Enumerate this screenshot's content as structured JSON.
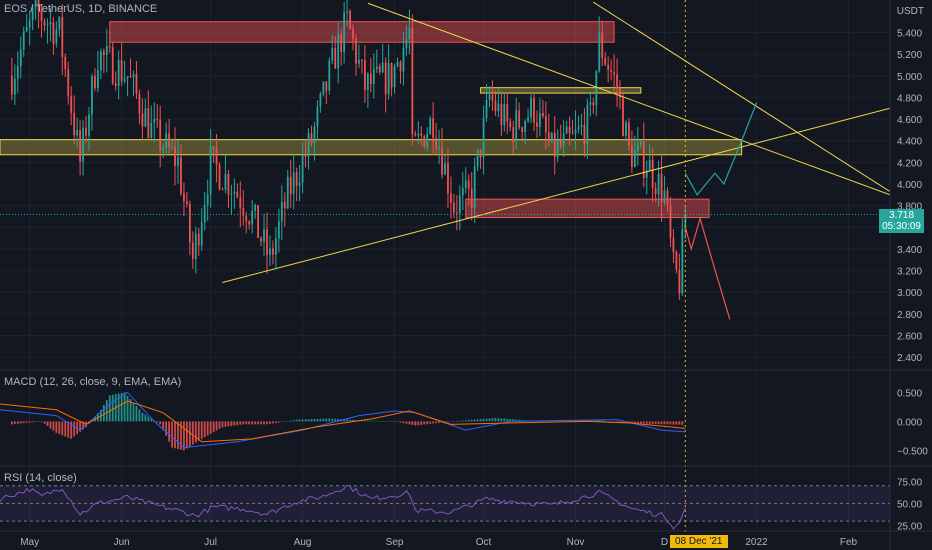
{
  "header": {
    "symbol_label": "EOS / TetherUS, 1D, BINANCE",
    "currency": "USDT",
    "macd_label": "MACD (12, 26, close, 9, EMA, EMA)",
    "rsi_label": "RSI (14, close)"
  },
  "badges": {
    "last_price": "3.718",
    "countdown": "05:30:09",
    "crosshair_date": "08 Dec '21"
  },
  "colors": {
    "background": "#131722",
    "up": "#26a69a",
    "down": "#ef5350",
    "grid": "#1e222d",
    "trendline": "#f0d64b",
    "zone_red": "#ef5350",
    "zone_yellow": "#f0d64b",
    "rsi_band": "#7e57c2",
    "macd_line": "#2962ff",
    "signal_line": "#ff6d00"
  },
  "chart_data": [
    {
      "type": "candlestick",
      "title": "EOS / TetherUS, 1D, BINANCE",
      "ylabel": "USDT",
      "ylim": [
        2.3,
        5.7
      ],
      "yticks": [
        2.4,
        2.6,
        2.8,
        3.0,
        3.2,
        3.4,
        3.6,
        3.8,
        4.0,
        4.2,
        4.4,
        4.6,
        4.8,
        5.0,
        5.2,
        5.4
      ],
      "ytick_labels": [
        "2.400",
        "2.600",
        "2.800",
        "3.000",
        "3.200",
        "3.400",
        "3.600",
        "3.800",
        "4.000",
        "4.200",
        "4.400",
        "4.600",
        "4.800",
        "5.000",
        "5.200",
        "5.400"
      ],
      "xticks": [
        "May",
        "Jun",
        "Jul",
        "Aug",
        "Sep",
        "Oct",
        "Nov",
        "D",
        "2022",
        "Feb"
      ],
      "x_range": [
        "2021-04-21",
        "2022-02-15"
      ],
      "last_close": 3.718,
      "close_path": [
        [
          "2021-04-25",
          5.0
        ],
        [
          "2021-05-03",
          5.6
        ],
        [
          "2021-05-11",
          5.4
        ],
        [
          "2021-05-18",
          4.2
        ],
        [
          "2021-05-24",
          5.2
        ],
        [
          "2021-06-03",
          5.0
        ],
        [
          "2021-06-11",
          4.5
        ],
        [
          "2021-06-20",
          4.2
        ],
        [
          "2021-06-25",
          3.3
        ],
        [
          "2021-07-01",
          4.2
        ],
        [
          "2021-07-08",
          4.0
        ],
        [
          "2021-07-15",
          3.7
        ],
        [
          "2021-07-21",
          3.3
        ],
        [
          "2021-07-27",
          3.9
        ],
        [
          "2021-08-04",
          4.4
        ],
        [
          "2021-08-12",
          5.2
        ],
        [
          "2021-08-16",
          5.5
        ],
        [
          "2021-08-22",
          4.9
        ],
        [
          "2021-08-31",
          5.0
        ],
        [
          "2021-09-06",
          5.4
        ],
        [
          "2021-09-07",
          4.3
        ],
        [
          "2021-09-14",
          4.6
        ],
        [
          "2021-09-21",
          3.8
        ],
        [
          "2021-09-27",
          3.9
        ],
        [
          "2021-10-03",
          4.8
        ],
        [
          "2021-10-10",
          4.5
        ],
        [
          "2021-10-18",
          4.7
        ],
        [
          "2021-10-24",
          4.3
        ],
        [
          "2021-10-31",
          4.4
        ],
        [
          "2021-11-06",
          4.6
        ],
        [
          "2021-11-09",
          5.3
        ],
        [
          "2021-11-15",
          4.9
        ],
        [
          "2021-11-19",
          4.3
        ],
        [
          "2021-11-25",
          4.2
        ],
        [
          "2021-12-01",
          3.9
        ],
        [
          "2021-12-04",
          3.2
        ],
        [
          "2021-12-06",
          3.1
        ],
        [
          "2021-12-08",
          3.718
        ]
      ],
      "annotations": {
        "red_zones": [
          {
            "from": "2021-05-28",
            "to": "2021-11-14",
            "low": 5.31,
            "high": 5.5
          },
          {
            "from": "2021-09-25",
            "to": "2021-12-16",
            "low": 3.69,
            "high": 3.86
          }
        ],
        "yellow_zones": [
          {
            "from": "2021-04-21",
            "to": "2021-12-27",
            "low": 4.27,
            "high": 4.41
          },
          {
            "from": "2021-09-30",
            "to": "2021-11-23",
            "low": 4.84,
            "high": 4.89
          }
        ],
        "trendlines": [
          {
            "p1": [
              "2021-07-05",
              3.09
            ],
            "p2": [
              "2022-02-15",
              4.7
            ]
          },
          {
            "p1": [
              "2021-08-23",
              5.67
            ],
            "p2": [
              "2022-02-15",
              3.9
            ]
          },
          {
            "p1": [
              "2021-11-07",
              5.68
            ],
            "p2": [
              "2022-02-15",
              3.93
            ]
          }
        ],
        "bull_projection": [
          [
            "2021-12-08",
            4.1
          ],
          [
            "2021-12-12",
            3.9
          ],
          [
            "2021-12-18",
            4.1
          ],
          [
            "2021-12-21",
            4.0
          ],
          [
            "2021-12-27",
            4.4
          ],
          [
            "2022-01-01",
            4.75
          ]
        ],
        "bear_projection": [
          [
            "2021-12-08",
            3.6
          ],
          [
            "2021-12-10",
            3.4
          ],
          [
            "2021-12-13",
            3.68
          ],
          [
            "2021-12-17",
            3.3
          ],
          [
            "2021-12-23",
            2.75
          ]
        ]
      }
    },
    {
      "type": "bar",
      "title": "MACD (12, 26, close, 9, EMA, EMA)",
      "yticks": [
        0.5,
        0.0,
        -0.5
      ],
      "ytick_labels": [
        "0.500",
        "0.000",
        "−0.500"
      ],
      "ylim": [
        -0.75,
        0.85
      ],
      "histogram": [
        [
          "2021-04-25",
          -0.05
        ],
        [
          "2021-05-05",
          0.0
        ],
        [
          "2021-05-10",
          -0.2
        ],
        [
          "2021-05-15",
          -0.3
        ],
        [
          "2021-05-20",
          -0.1
        ],
        [
          "2021-05-25",
          0.2
        ],
        [
          "2021-05-28",
          0.45
        ],
        [
          "2021-06-02",
          0.5
        ],
        [
          "2021-06-08",
          0.15
        ],
        [
          "2021-06-14",
          -0.05
        ],
        [
          "2021-06-18",
          -0.45
        ],
        [
          "2021-06-22",
          -0.5
        ],
        [
          "2021-06-28",
          -0.3
        ],
        [
          "2021-07-05",
          -0.1
        ],
        [
          "2021-07-12",
          -0.05
        ],
        [
          "2021-07-20",
          -0.05
        ],
        [
          "2021-07-30",
          0.03
        ],
        [
          "2021-08-10",
          0.05
        ],
        [
          "2021-08-20",
          0.02
        ],
        [
          "2021-09-01",
          0.0
        ],
        [
          "2021-09-08",
          -0.07
        ],
        [
          "2021-09-15",
          -0.03
        ],
        [
          "2021-09-25",
          0.02
        ],
        [
          "2021-10-05",
          0.06
        ],
        [
          "2021-10-15",
          0.02
        ],
        [
          "2021-10-25",
          -0.01
        ],
        [
          "2021-11-08",
          0.03
        ],
        [
          "2021-11-15",
          -0.02
        ],
        [
          "2021-11-25",
          -0.04
        ],
        [
          "2021-12-08",
          -0.06
        ]
      ],
      "macd_line": [
        [
          "2021-04-21",
          0.2
        ],
        [
          "2021-05-10",
          0.1
        ],
        [
          "2021-05-18",
          -0.15
        ],
        [
          "2021-05-28",
          0.3
        ],
        [
          "2021-06-03",
          0.5
        ],
        [
          "2021-06-12",
          0.0
        ],
        [
          "2021-06-22",
          -0.45
        ],
        [
          "2021-07-10",
          -0.35
        ],
        [
          "2021-08-01",
          -0.15
        ],
        [
          "2021-08-20",
          0.1
        ],
        [
          "2021-09-01",
          0.18
        ],
        [
          "2021-09-08",
          0.15
        ],
        [
          "2021-09-25",
          -0.15
        ],
        [
          "2021-10-10",
          0.0
        ],
        [
          "2021-11-01",
          0.02
        ],
        [
          "2021-11-15",
          0.03
        ],
        [
          "2021-11-30",
          -0.15
        ],
        [
          "2021-12-08",
          -0.18
        ]
      ],
      "signal_line": [
        [
          "2021-04-21",
          0.3
        ],
        [
          "2021-05-10",
          0.2
        ],
        [
          "2021-05-20",
          -0.05
        ],
        [
          "2021-06-03",
          0.35
        ],
        [
          "2021-06-15",
          0.15
        ],
        [
          "2021-06-28",
          -0.35
        ],
        [
          "2021-07-15",
          -0.3
        ],
        [
          "2021-08-05",
          -0.1
        ],
        [
          "2021-08-25",
          0.05
        ],
        [
          "2021-09-06",
          0.18
        ],
        [
          "2021-09-20",
          -0.05
        ],
        [
          "2021-10-15",
          -0.02
        ],
        [
          "2021-11-05",
          0.0
        ],
        [
          "2021-11-20",
          -0.03
        ],
        [
          "2021-12-08",
          -0.12
        ]
      ]
    },
    {
      "type": "line",
      "title": "RSI (14, close)",
      "yticks": [
        75.0,
        50.0,
        25.0
      ],
      "ytick_labels": [
        "75.00",
        "50.00",
        "25.00"
      ],
      "ylim": [
        20,
        90
      ],
      "band": [
        30,
        70
      ],
      "values": [
        [
          "2021-04-21",
          55
        ],
        [
          "2021-05-01",
          66
        ],
        [
          "2021-05-05",
          58
        ],
        [
          "2021-05-12",
          68
        ],
        [
          "2021-05-18",
          38
        ],
        [
          "2021-05-24",
          50
        ],
        [
          "2021-06-03",
          57
        ],
        [
          "2021-06-10",
          50
        ],
        [
          "2021-06-20",
          42
        ],
        [
          "2021-06-26",
          36
        ],
        [
          "2021-07-02",
          46
        ],
        [
          "2021-07-12",
          44
        ],
        [
          "2021-07-20",
          38
        ],
        [
          "2021-07-30",
          52
        ],
        [
          "2021-08-08",
          58
        ],
        [
          "2021-08-16",
          70
        ],
        [
          "2021-08-24",
          55
        ],
        [
          "2021-09-06",
          62
        ],
        [
          "2021-09-08",
          42
        ],
        [
          "2021-09-20",
          40
        ],
        [
          "2021-10-02",
          55
        ],
        [
          "2021-10-12",
          52
        ],
        [
          "2021-10-24",
          48
        ],
        [
          "2021-11-09",
          62
        ],
        [
          "2021-11-20",
          44
        ],
        [
          "2021-12-01",
          36
        ],
        [
          "2021-12-04",
          24
        ],
        [
          "2021-12-06",
          27
        ],
        [
          "2021-12-08",
          45
        ]
      ]
    }
  ]
}
